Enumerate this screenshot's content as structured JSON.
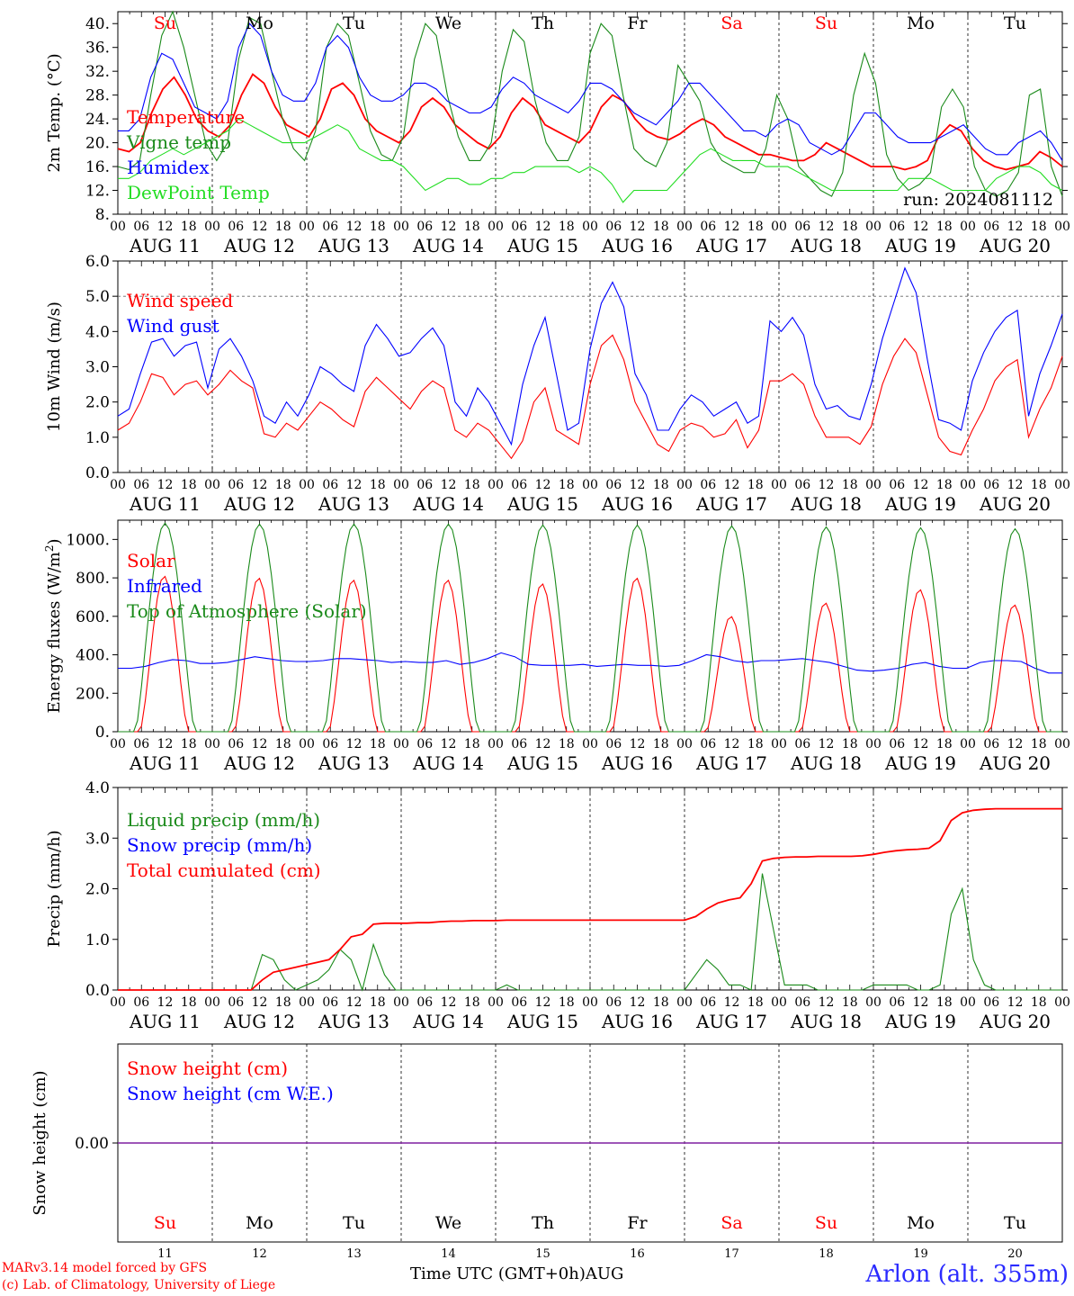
{
  "run_label": "run: 2024081112",
  "days": [
    "Su",
    "Mo",
    "Tu",
    "We",
    "Th",
    "Fr",
    "Sa",
    "Su",
    "Mo",
    "Tu"
  ],
  "day_colors": [
    "#ff0000",
    "#000000",
    "#000000",
    "#000000",
    "#000000",
    "#000000",
    "#ff0000",
    "#ff0000",
    "#000000",
    "#000000"
  ],
  "date_labels": [
    "AUG 11",
    "AUG 12",
    "AUG 13",
    "AUG 14",
    "AUG 15",
    "AUG 16",
    "AUG 17",
    "AUG 18",
    "AUG 19",
    "AUG 20"
  ],
  "day_numbers": [
    "11",
    "12",
    "13",
    "14",
    "15",
    "16",
    "17",
    "18",
    "19",
    "20"
  ],
  "hour_labels": [
    "00",
    "06",
    "12",
    "18"
  ],
  "month_label": "AUG",
  "footer": {
    "credit_line1": "MARv3.14 model forced by GFS",
    "credit_line2": "(c) Lab. of Climatology, University of Liege",
    "xlabel": "Time UTC (GMT+0h)",
    "station": "Arlon (alt. 355m)"
  },
  "colors": {
    "red": "#ff0000",
    "green": "#1a8a1a",
    "blue": "#0000ff",
    "lightgreen": "#22dd22",
    "purple": "#7f1fa0"
  },
  "chart_data": [
    {
      "type": "line",
      "ylabel": "2m Temp. (°C)",
      "ylim": [
        8,
        42
      ],
      "yticks": [
        "8.",
        "12.",
        "16.",
        "20.",
        "24.",
        "28.",
        "32.",
        "36.",
        "40."
      ],
      "x": "hours since AUG 11 00 UTC, 3-hourly, 0..240",
      "series": [
        {
          "name": "Temperature",
          "color": "#ff0000",
          "values": [
            19,
            18.5,
            20,
            25,
            29,
            31,
            28,
            24,
            22,
            21,
            23,
            28,
            31.5,
            30,
            26,
            23,
            22,
            21,
            24,
            29,
            30,
            28,
            24,
            22,
            21,
            20,
            22,
            26,
            27.5,
            26,
            23,
            21.5,
            20,
            19,
            21,
            25,
            27.5,
            26,
            23,
            22,
            21,
            20,
            22,
            26,
            28,
            27,
            24,
            22,
            21,
            20.5,
            21.5,
            23,
            24,
            23,
            21,
            20,
            19,
            18,
            18,
            17.5,
            17,
            17,
            18,
            20,
            19,
            18,
            17,
            16,
            16,
            16,
            15.5,
            16,
            17,
            21,
            23,
            22,
            19,
            17,
            16,
            15.5,
            16,
            16.5,
            18.5,
            17.5,
            16
          ]
        },
        {
          "name": "Vigne temp",
          "color": "#1a8a1a",
          "values": [
            16,
            15.5,
            17,
            28,
            38,
            42,
            36,
            28,
            20,
            17,
            20,
            34,
            41,
            40,
            32,
            24,
            19,
            17,
            22,
            36,
            40,
            38,
            30,
            22,
            18,
            17,
            21,
            34,
            40,
            38,
            28,
            21,
            17,
            17,
            20,
            32,
            39,
            37,
            27,
            20,
            17,
            17,
            21,
            35,
            40,
            38,
            28,
            19,
            17,
            16,
            20,
            33,
            30,
            27,
            20,
            17,
            16,
            15,
            15,
            19,
            28,
            24,
            16,
            14,
            12,
            11,
            15,
            28,
            35,
            30,
            18,
            14,
            12,
            13,
            15,
            26,
            29,
            26,
            16,
            12,
            11,
            12,
            15,
            28,
            29,
            16,
            11
          ]
        },
        {
          "name": "Humidex",
          "color": "#0000ff",
          "values": [
            22,
            22,
            24,
            31,
            35,
            34,
            30,
            26,
            25,
            24,
            27,
            36,
            40,
            38,
            32,
            28,
            27,
            27,
            30,
            36,
            38,
            36,
            31,
            28,
            27,
            27,
            28,
            30,
            30,
            29,
            27,
            26,
            25,
            25,
            26,
            29,
            31,
            30,
            28,
            27,
            26,
            25,
            27,
            30,
            30,
            29,
            27,
            25,
            24,
            23,
            25,
            27,
            30,
            30,
            28,
            26,
            24,
            22,
            22,
            21,
            23,
            24,
            23,
            20,
            19,
            18,
            19,
            22,
            25,
            25,
            23,
            21,
            20,
            20,
            20,
            21,
            22,
            23,
            21,
            19,
            18,
            18,
            20,
            21,
            22,
            20,
            17
          ]
        },
        {
          "name": "DewPoint Temp",
          "color": "#22dd22",
          "values": [
            14,
            14,
            15,
            17,
            18,
            19,
            18,
            19,
            20,
            21,
            22,
            24,
            23,
            22,
            21,
            20,
            20,
            20,
            21,
            22,
            23,
            22,
            19,
            18,
            17,
            17,
            16,
            14,
            12,
            13,
            14,
            14,
            13,
            13,
            14,
            14,
            15,
            15,
            16,
            16,
            16,
            16,
            15,
            16,
            15,
            13,
            10,
            12,
            12,
            12,
            12,
            14,
            16,
            18,
            19,
            18,
            17,
            17,
            17,
            16,
            16,
            16,
            15,
            14,
            13,
            12,
            12,
            12,
            12,
            12,
            12,
            12,
            14,
            14,
            14,
            13,
            12,
            12,
            12,
            12,
            14,
            15,
            16,
            16,
            15,
            13,
            12
          ]
        }
      ]
    },
    {
      "type": "line",
      "ylabel": "10m Wind (m/s)",
      "ylim": [
        0,
        6
      ],
      "yticks": [
        "0.0",
        "1.0",
        "2.0",
        "3.0",
        "4.0",
        "5.0",
        "6.0"
      ],
      "series": [
        {
          "name": "Wind speed",
          "color": "#ff0000",
          "values": [
            1.2,
            1.4,
            2.0,
            2.8,
            2.7,
            2.2,
            2.5,
            2.6,
            2.2,
            2.5,
            2.9,
            2.6,
            2.4,
            1.1,
            1.0,
            1.4,
            1.2,
            1.6,
            2.0,
            1.8,
            1.5,
            1.3,
            2.3,
            2.7,
            2.4,
            2.1,
            1.8,
            2.3,
            2.6,
            2.4,
            1.2,
            1.0,
            1.4,
            1.2,
            0.8,
            0.4,
            0.9,
            2.0,
            2.4,
            1.2,
            1.0,
            0.8,
            2.5,
            3.6,
            3.9,
            3.2,
            2.0,
            1.4,
            0.8,
            0.6,
            1.2,
            1.4,
            1.3,
            1.0,
            1.1,
            1.5,
            0.7,
            1.2,
            2.6,
            2.6,
            2.8,
            2.5,
            1.6,
            1.0,
            1.0,
            1.0,
            0.8,
            1.3,
            2.5,
            3.3,
            3.8,
            3.4,
            2.2,
            1.0,
            0.6,
            0.5,
            1.2,
            1.8,
            2.6,
            3.0,
            3.2,
            1.0,
            1.8,
            2.4,
            3.3
          ]
        },
        {
          "name": "Wind gust",
          "color": "#0000ff",
          "values": [
            1.6,
            1.8,
            2.8,
            3.7,
            3.8,
            3.3,
            3.6,
            3.7,
            2.4,
            3.5,
            3.8,
            3.3,
            2.6,
            1.6,
            1.4,
            2.0,
            1.6,
            2.2,
            3.0,
            2.8,
            2.5,
            2.3,
            3.6,
            4.2,
            3.8,
            3.3,
            3.4,
            3.8,
            4.1,
            3.6,
            2.0,
            1.6,
            2.4,
            2.0,
            1.4,
            0.8,
            2.5,
            3.6,
            4.4,
            2.8,
            1.2,
            1.4,
            3.5,
            4.8,
            5.4,
            4.7,
            2.8,
            2.2,
            1.2,
            1.2,
            1.8,
            2.2,
            2.0,
            1.6,
            1.8,
            2.0,
            1.4,
            1.6,
            4.3,
            4.0,
            4.4,
            3.9,
            2.5,
            1.8,
            1.9,
            1.6,
            1.5,
            2.5,
            3.8,
            4.8,
            5.8,
            5.1,
            3.2,
            1.5,
            1.4,
            1.2,
            2.6,
            3.4,
            4.0,
            4.4,
            4.6,
            1.6,
            2.8,
            3.6,
            4.5
          ]
        }
      ]
    },
    {
      "type": "line",
      "ylabel": "Energy fluxes (W/m²)",
      "ylim": [
        0,
        1100
      ],
      "yticks": [
        "0.",
        "200.",
        "400.",
        "600.",
        "800.",
        "1000."
      ],
      "series": [
        {
          "name": "Solar",
          "color": "#ff0000",
          "peaks": [
            810,
            800,
            790,
            790,
            770,
            800,
            600,
            670,
            740,
            660
          ]
        },
        {
          "name": "Infrared",
          "color": "#0000ff",
          "values": [
            330,
            330,
            340,
            360,
            375,
            370,
            355,
            355,
            360,
            375,
            390,
            380,
            370,
            365,
            365,
            370,
            380,
            380,
            375,
            370,
            360,
            365,
            360,
            360,
            370,
            350,
            360,
            380,
            410,
            390,
            350,
            345,
            345,
            345,
            350,
            340,
            345,
            350,
            345,
            345,
            340,
            345,
            370,
            400,
            390,
            370,
            360,
            370,
            370,
            375,
            380,
            370,
            360,
            340,
            320,
            315,
            320,
            330,
            350,
            360,
            340,
            330,
            330,
            360,
            370,
            370,
            365,
            330,
            305,
            305
          ]
        },
        {
          "name": "Top of Atmosphere (Solar)",
          "color": "#1a8a1a",
          "peaks": [
            1085,
            1080,
            1080,
            1080,
            1075,
            1075,
            1070,
            1065,
            1060,
            1055
          ]
        }
      ]
    },
    {
      "type": "line",
      "ylabel": "Precip (mm/h)",
      "ylim": [
        0,
        4
      ],
      "yticks": [
        "0.0",
        "1.0",
        "2.0",
        "3.0",
        "4.0"
      ],
      "series": [
        {
          "name": "Liquid precip (mm/h)",
          "color": "#1a8a1a",
          "values": [
            0,
            0,
            0,
            0,
            0,
            0,
            0,
            0,
            0,
            0,
            0,
            0,
            0,
            0.7,
            0.6,
            0.2,
            0,
            0.1,
            0.2,
            0.4,
            0.8,
            0.6,
            0,
            0.9,
            0.3,
            0,
            0,
            0,
            0,
            0,
            0,
            0,
            0,
            0,
            0,
            0.1,
            0,
            0,
            0,
            0,
            0,
            0,
            0,
            0,
            0,
            0,
            0,
            0,
            0,
            0,
            0,
            0,
            0.3,
            0.6,
            0.4,
            0.1,
            0.1,
            0,
            2.3,
            1.2,
            0.1,
            0.1,
            0.1,
            0,
            0,
            0,
            0,
            0,
            0.1,
            0.1,
            0.1,
            0.1,
            0,
            0,
            0.1,
            1.5,
            2.0,
            0.6,
            0.1,
            0,
            0,
            0,
            0,
            0,
            0,
            0
          ]
        },
        {
          "name": "Snow precip (mm/h)",
          "color": "#0000ff",
          "values": []
        },
        {
          "name": "Total cumulated (cm)",
          "color": "#ff0000",
          "values": [
            0,
            0,
            0,
            0,
            0,
            0,
            0,
            0,
            0,
            0,
            0,
            0,
            0,
            0.2,
            0.35,
            0.4,
            0.45,
            0.5,
            0.55,
            0.6,
            0.8,
            1.05,
            1.1,
            1.3,
            1.32,
            1.32,
            1.32,
            1.33,
            1.33,
            1.35,
            1.36,
            1.36,
            1.37,
            1.37,
            1.37,
            1.38,
            1.38,
            1.38,
            1.38,
            1.38,
            1.38,
            1.38,
            1.38,
            1.38,
            1.38,
            1.38,
            1.38,
            1.38,
            1.38,
            1.38,
            1.38,
            1.38,
            1.45,
            1.6,
            1.72,
            1.78,
            1.82,
            2.1,
            2.55,
            2.6,
            2.62,
            2.63,
            2.63,
            2.64,
            2.64,
            2.64,
            2.64,
            2.65,
            2.68,
            2.72,
            2.75,
            2.77,
            2.78,
            2.8,
            2.95,
            3.35,
            3.5,
            3.55,
            3.57,
            3.58,
            3.58,
            3.58,
            3.58,
            3.58,
            3.58,
            3.58
          ]
        }
      ]
    },
    {
      "type": "line",
      "ylabel": "Snow height (cm)",
      "yticks": [
        "0.00"
      ],
      "series": [
        {
          "name": "Snow height (cm)",
          "color": "#ff0000",
          "values": [
            0
          ]
        },
        {
          "name": "Snow height (cm W.E.)",
          "color": "#0000ff",
          "values": [
            0
          ]
        }
      ]
    }
  ]
}
